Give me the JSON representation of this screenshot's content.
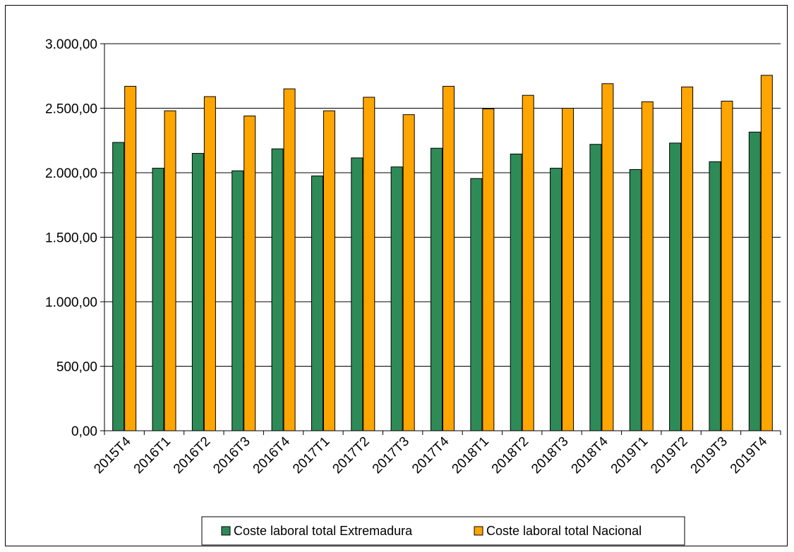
{
  "chart_data": {
    "type": "bar",
    "title": "",
    "xlabel": "",
    "ylabel": "",
    "categories": [
      "2015T4",
      "2016T1",
      "2016T2",
      "2016T3",
      "2016T4",
      "2017T1",
      "2017T2",
      "2017T3",
      "2017T4",
      "2018T1",
      "2018T2",
      "2018T3",
      "2018T4",
      "2019T1",
      "2019T2",
      "2019T3",
      "2019T4"
    ],
    "series": [
      {
        "name": "Coste laboral total Extremadura",
        "color": "#2e8b57",
        "values": [
          2235,
          2035,
          2150,
          2015,
          2185,
          1975,
          2115,
          2045,
          2190,
          1955,
          2145,
          2035,
          2220,
          2025,
          2230,
          2085,
          2315
        ]
      },
      {
        "name": "Coste laboral total Nacional",
        "color": "#ffa500",
        "values": [
          2670,
          2480,
          2590,
          2440,
          2650,
          2480,
          2585,
          2450,
          2670,
          2495,
          2600,
          2500,
          2690,
          2550,
          2665,
          2555,
          2755
        ]
      }
    ],
    "ylim": [
      0,
      3000
    ],
    "yticks": [
      "0,00",
      "500,00",
      "1.000,00",
      "1.500,00",
      "2.000,00",
      "2.500,00",
      "3.000,00"
    ],
    "grid": true,
    "legend": "bottom"
  }
}
